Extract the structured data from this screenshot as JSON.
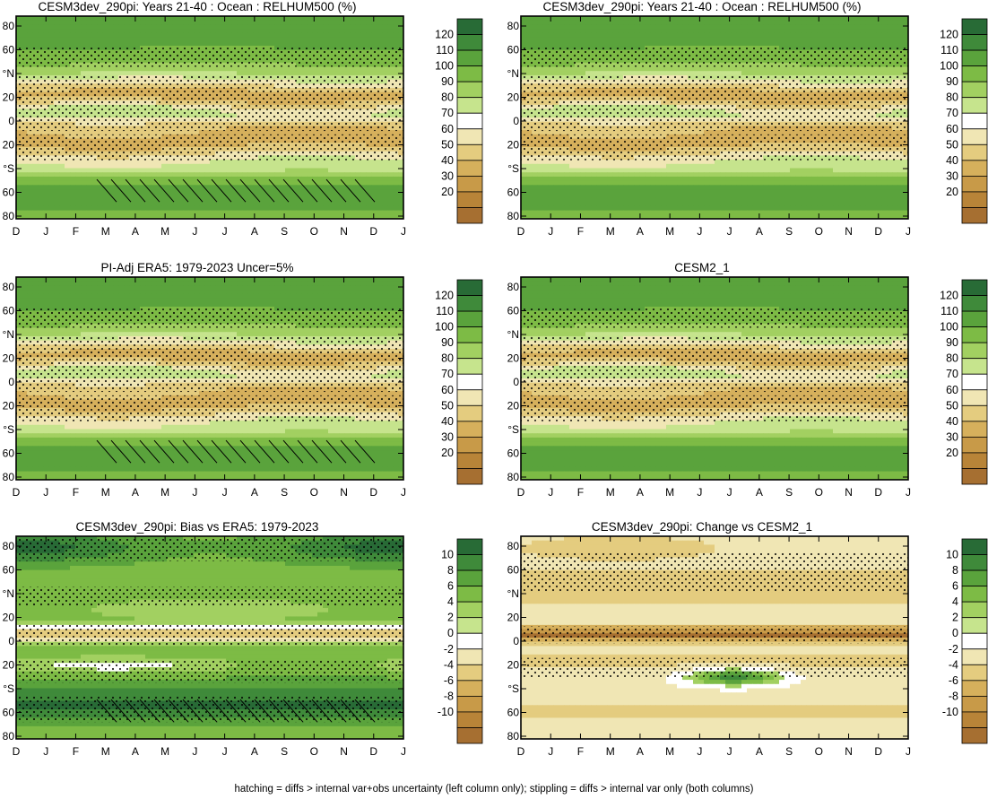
{
  "footer": "hatching = diffs > internal var+obs uncertainty (left column only); stippling = diffs > internal var only (both columns)",
  "chart_data": [
    {
      "id": "p1",
      "type": "heatmap",
      "title": "CESM3dev_290pi: Years 21-40 : Ocean : RELHUM500 (%)",
      "field": "clim",
      "hatch": true,
      "x": [
        "D",
        "J",
        "F",
        "M",
        "A",
        "M",
        "J",
        "J",
        "A",
        "S",
        "O",
        "N",
        "D",
        "J"
      ],
      "y": [
        "80",
        "60",
        "°N",
        "20",
        "0",
        "20",
        "°S",
        "60",
        "80"
      ],
      "colorbar": {
        "labels": [
          "120",
          "110",
          "100",
          "90",
          "80",
          "70",
          "60",
          "50",
          "40",
          "30",
          "20"
        ]
      }
    },
    {
      "id": "p2",
      "type": "heatmap",
      "title": "CESM3dev_290pi: Years 21-40 : Ocean : RELHUM500 (%)",
      "field": "clim",
      "hatch": false,
      "x": [
        "D",
        "J",
        "F",
        "M",
        "A",
        "M",
        "J",
        "J",
        "A",
        "S",
        "O",
        "N",
        "D",
        "J"
      ],
      "y": [
        "80",
        "60",
        "°N",
        "20",
        "0",
        "20",
        "°S",
        "60",
        "80"
      ],
      "colorbar": {
        "labels": [
          "120",
          "110",
          "100",
          "90",
          "80",
          "70",
          "60",
          "50",
          "40",
          "30",
          "20"
        ]
      }
    },
    {
      "id": "p3",
      "type": "heatmap",
      "title": "PI-Adj ERA5: 1979-2023 Uncer=5%",
      "field": "clim",
      "hatch": true,
      "x": [
        "D",
        "J",
        "F",
        "M",
        "A",
        "M",
        "J",
        "J",
        "A",
        "S",
        "O",
        "N",
        "D",
        "J"
      ],
      "y": [
        "80",
        "60",
        "°N",
        "20",
        "0",
        "20",
        "°S",
        "60",
        "80"
      ],
      "colorbar": {
        "labels": [
          "120",
          "110",
          "100",
          "90",
          "80",
          "70",
          "60",
          "50",
          "40",
          "30",
          "20"
        ]
      }
    },
    {
      "id": "p4",
      "type": "heatmap",
      "title": "CESM2_1",
      "field": "clim",
      "hatch": false,
      "x": [
        "D",
        "J",
        "F",
        "M",
        "A",
        "M",
        "J",
        "J",
        "A",
        "S",
        "O",
        "N",
        "D",
        "J"
      ],
      "y": [
        "80",
        "60",
        "°N",
        "20",
        "0",
        "20",
        "°S",
        "60",
        "80"
      ],
      "colorbar": {
        "labels": [
          "120",
          "110",
          "100",
          "90",
          "80",
          "70",
          "60",
          "50",
          "40",
          "30",
          "20"
        ]
      }
    },
    {
      "id": "p5",
      "type": "heatmap",
      "title": "CESM3dev_290pi: Bias vs ERA5: 1979-2023",
      "field": "bias",
      "hatch": true,
      "x": [
        "D",
        "J",
        "F",
        "M",
        "A",
        "M",
        "J",
        "J",
        "A",
        "S",
        "O",
        "N",
        "D",
        "J"
      ],
      "y": [
        "80",
        "60",
        "°N",
        "20",
        "0",
        "20",
        "°S",
        "60",
        "80"
      ],
      "colorbar": {
        "labels": [
          "10",
          "8",
          "6",
          "4",
          "2",
          "0",
          "-2",
          "-4",
          "-6",
          "-8",
          "-10"
        ]
      }
    },
    {
      "id": "p6",
      "type": "heatmap",
      "title": "CESM3dev_290pi: Change vs CESM2_1",
      "field": "change",
      "hatch": false,
      "x": [
        "D",
        "J",
        "F",
        "M",
        "A",
        "M",
        "J",
        "J",
        "A",
        "S",
        "O",
        "N",
        "D",
        "J"
      ],
      "y": [
        "80",
        "60",
        "°N",
        "20",
        "0",
        "20",
        "°S",
        "60",
        "80"
      ],
      "colorbar": {
        "labels": [
          "10",
          "8",
          "6",
          "4",
          "2",
          "0",
          "-2",
          "-4",
          "-6",
          "-8",
          "-10"
        ]
      }
    }
  ],
  "colors": {
    "scale": [
      "#286b36",
      "#3f8a3a",
      "#5aa33c",
      "#7dbb45",
      "#a2d061",
      "#c6e48d",
      "#ffffff",
      "#f0e6b4",
      "#e4cc7f",
      "#d6b05c",
      "#c89a48",
      "#b88438",
      "#a66f31"
    ]
  }
}
